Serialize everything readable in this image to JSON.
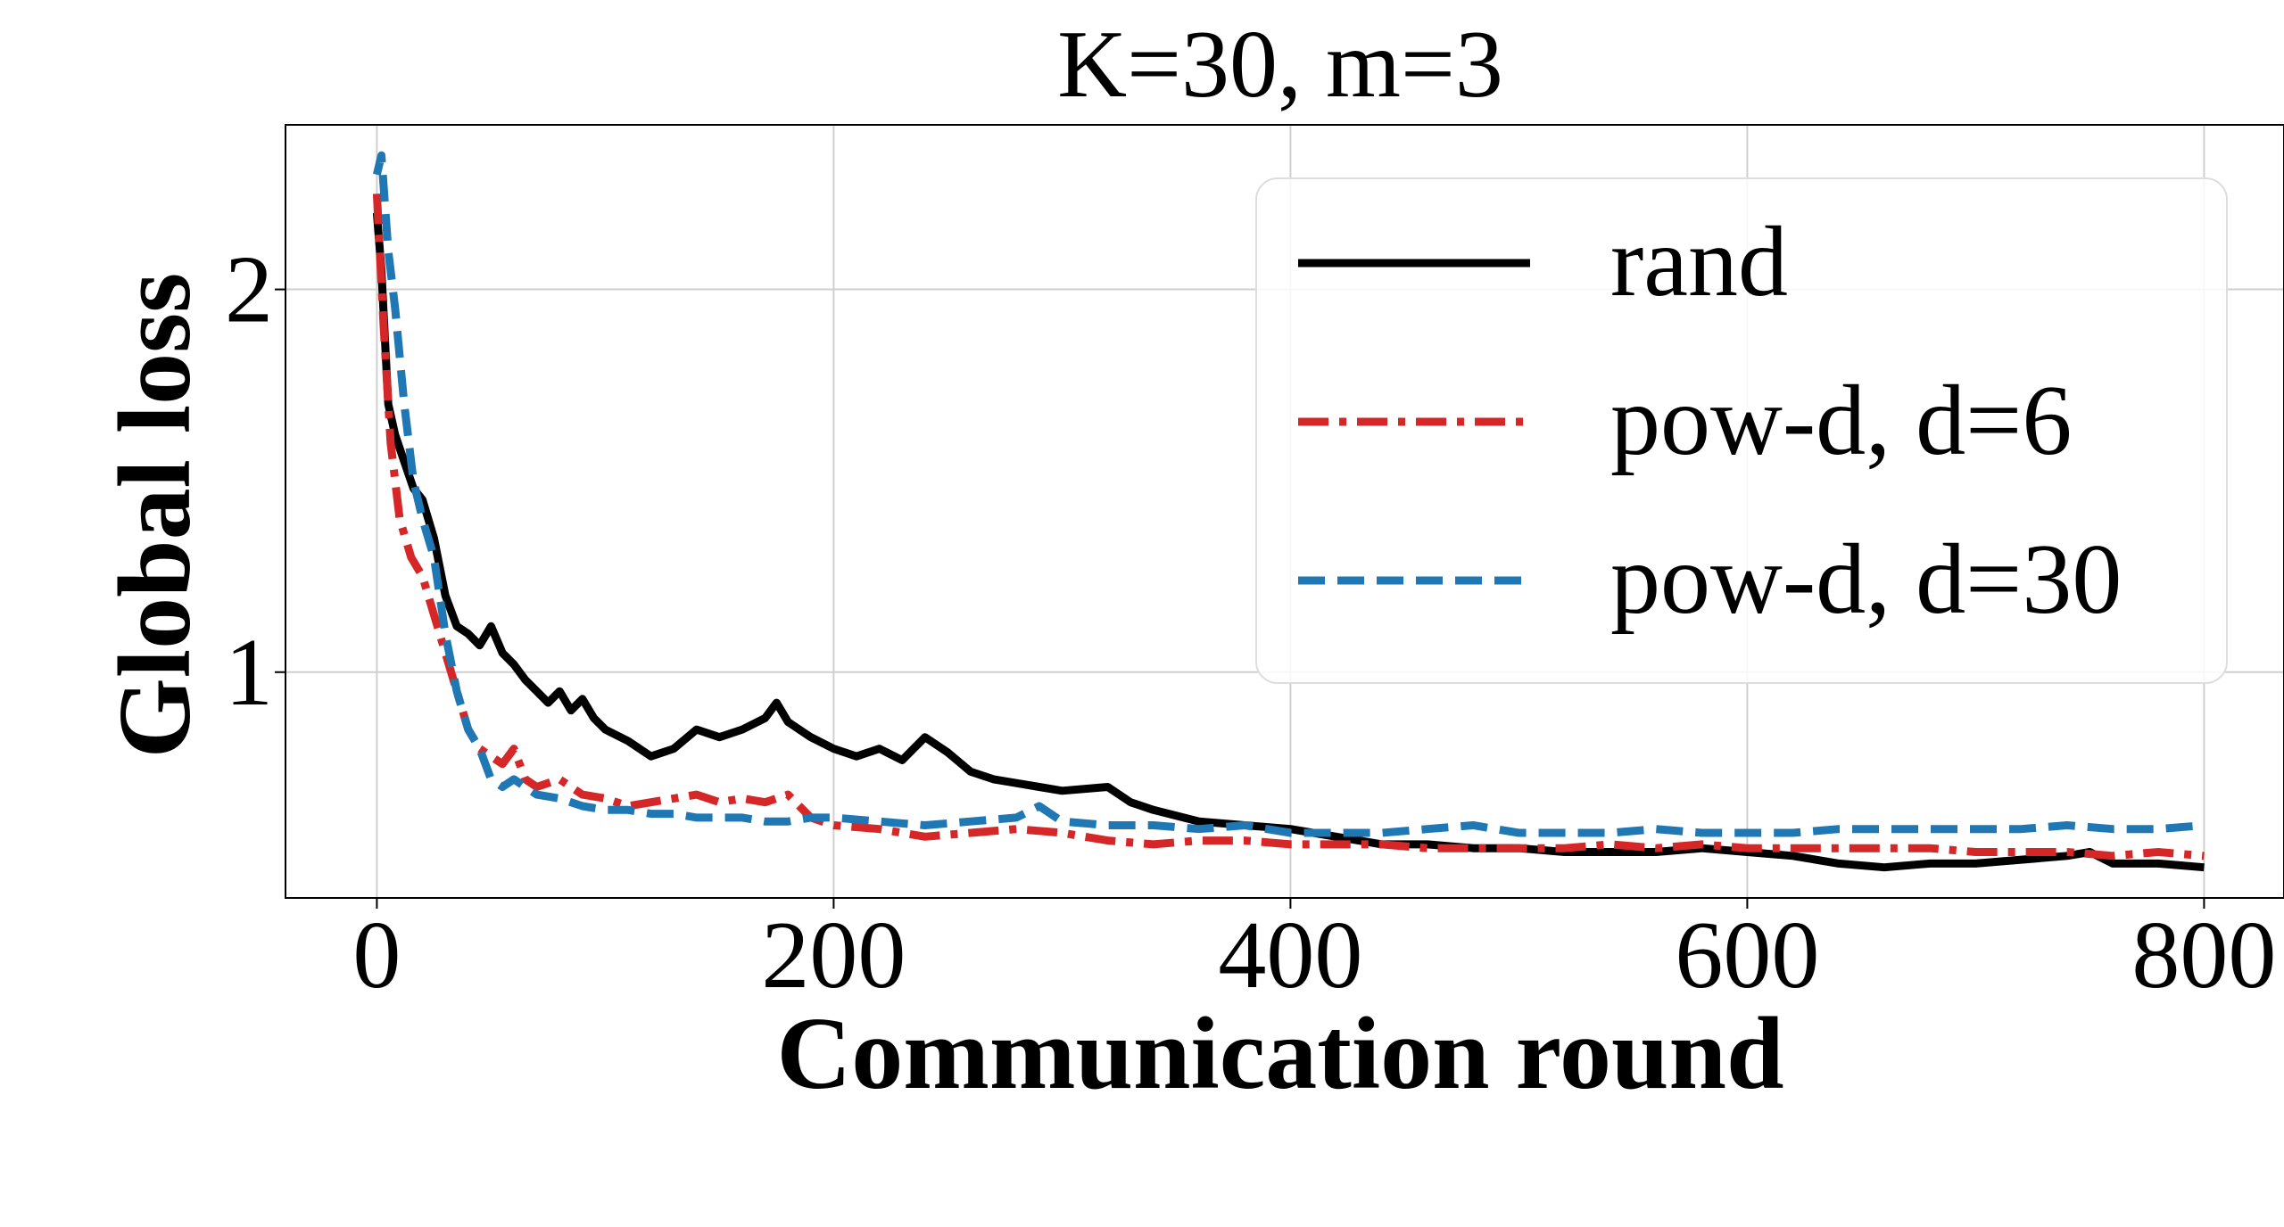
{
  "chart_data": {
    "type": "line",
    "title": "K=30, m=3",
    "xlabel": "Communication round",
    "ylabel": "Global loss",
    "xlim": [
      -40,
      835
    ],
    "ylim": [
      0.41,
      2.43
    ],
    "xticks": [
      0,
      200,
      400,
      600,
      800
    ],
    "yticks": [
      1,
      2
    ],
    "grid": true,
    "legend": {
      "placement": "top-right",
      "entries": [
        "rand",
        "pow-d, d=6",
        "pow-d, d=30"
      ]
    },
    "series": [
      {
        "name": "rand",
        "color": "#000000",
        "style": "solid",
        "points": [
          [
            0,
            2.2
          ],
          [
            2,
            2.05
          ],
          [
            5,
            1.7
          ],
          [
            8,
            1.62
          ],
          [
            12,
            1.55
          ],
          [
            16,
            1.48
          ],
          [
            20,
            1.45
          ],
          [
            25,
            1.35
          ],
          [
            30,
            1.2
          ],
          [
            35,
            1.12
          ],
          [
            40,
            1.1
          ],
          [
            45,
            1.07
          ],
          [
            50,
            1.12
          ],
          [
            55,
            1.05
          ],
          [
            60,
            1.02
          ],
          [
            65,
            0.98
          ],
          [
            70,
            0.95
          ],
          [
            75,
            0.92
          ],
          [
            80,
            0.95
          ],
          [
            85,
            0.9
          ],
          [
            90,
            0.93
          ],
          [
            95,
            0.88
          ],
          [
            100,
            0.85
          ],
          [
            110,
            0.82
          ],
          [
            120,
            0.78
          ],
          [
            130,
            0.8
          ],
          [
            140,
            0.85
          ],
          [
            150,
            0.83
          ],
          [
            160,
            0.85
          ],
          [
            170,
            0.88
          ],
          [
            175,
            0.92
          ],
          [
            180,
            0.87
          ],
          [
            190,
            0.83
          ],
          [
            200,
            0.8
          ],
          [
            210,
            0.78
          ],
          [
            220,
            0.8
          ],
          [
            230,
            0.77
          ],
          [
            240,
            0.83
          ],
          [
            250,
            0.79
          ],
          [
            260,
            0.74
          ],
          [
            270,
            0.72
          ],
          [
            280,
            0.71
          ],
          [
            290,
            0.7
          ],
          [
            300,
            0.69
          ],
          [
            320,
            0.7
          ],
          [
            330,
            0.66
          ],
          [
            340,
            0.64
          ],
          [
            360,
            0.61
          ],
          [
            380,
            0.6
          ],
          [
            400,
            0.59
          ],
          [
            420,
            0.57
          ],
          [
            440,
            0.55
          ],
          [
            460,
            0.55
          ],
          [
            480,
            0.54
          ],
          [
            500,
            0.54
          ],
          [
            520,
            0.53
          ],
          [
            540,
            0.53
          ],
          [
            560,
            0.53
          ],
          [
            580,
            0.54
          ],
          [
            600,
            0.53
          ],
          [
            620,
            0.52
          ],
          [
            640,
            0.5
          ],
          [
            660,
            0.49
          ],
          [
            680,
            0.5
          ],
          [
            700,
            0.5
          ],
          [
            720,
            0.51
          ],
          [
            740,
            0.52
          ],
          [
            750,
            0.53
          ],
          [
            760,
            0.5
          ],
          [
            780,
            0.5
          ],
          [
            800,
            0.49
          ]
        ]
      },
      {
        "name": "pow-d, d=6",
        "color": "#d62728",
        "style": "dashdot",
        "points": [
          [
            0,
            2.25
          ],
          [
            3,
            1.9
          ],
          [
            6,
            1.6
          ],
          [
            10,
            1.4
          ],
          [
            15,
            1.3
          ],
          [
            20,
            1.25
          ],
          [
            25,
            1.15
          ],
          [
            30,
            1.05
          ],
          [
            35,
            0.95
          ],
          [
            40,
            0.85
          ],
          [
            45,
            0.8
          ],
          [
            50,
            0.78
          ],
          [
            55,
            0.76
          ],
          [
            60,
            0.8
          ],
          [
            65,
            0.72
          ],
          [
            70,
            0.7
          ],
          [
            80,
            0.72
          ],
          [
            90,
            0.68
          ],
          [
            100,
            0.67
          ],
          [
            110,
            0.65
          ],
          [
            120,
            0.66
          ],
          [
            130,
            0.67
          ],
          [
            140,
            0.68
          ],
          [
            150,
            0.66
          ],
          [
            160,
            0.67
          ],
          [
            170,
            0.66
          ],
          [
            180,
            0.68
          ],
          [
            190,
            0.62
          ],
          [
            200,
            0.6
          ],
          [
            220,
            0.59
          ],
          [
            240,
            0.57
          ],
          [
            260,
            0.58
          ],
          [
            280,
            0.59
          ],
          [
            300,
            0.58
          ],
          [
            320,
            0.56
          ],
          [
            340,
            0.55
          ],
          [
            360,
            0.56
          ],
          [
            380,
            0.56
          ],
          [
            400,
            0.55
          ],
          [
            420,
            0.55
          ],
          [
            440,
            0.55
          ],
          [
            460,
            0.54
          ],
          [
            480,
            0.54
          ],
          [
            500,
            0.54
          ],
          [
            520,
            0.54
          ],
          [
            540,
            0.55
          ],
          [
            560,
            0.54
          ],
          [
            580,
            0.55
          ],
          [
            600,
            0.54
          ],
          [
            620,
            0.54
          ],
          [
            640,
            0.54
          ],
          [
            660,
            0.54
          ],
          [
            680,
            0.54
          ],
          [
            700,
            0.53
          ],
          [
            720,
            0.53
          ],
          [
            740,
            0.53
          ],
          [
            760,
            0.52
          ],
          [
            780,
            0.53
          ],
          [
            800,
            0.52
          ]
        ]
      },
      {
        "name": "pow-d, d=30",
        "color": "#1f77b4",
        "style": "dashed",
        "points": [
          [
            0,
            2.3
          ],
          [
            2,
            2.35
          ],
          [
            5,
            2.1
          ],
          [
            8,
            1.95
          ],
          [
            12,
            1.7
          ],
          [
            16,
            1.5
          ],
          [
            20,
            1.4
          ],
          [
            25,
            1.3
          ],
          [
            30,
            1.1
          ],
          [
            35,
            0.95
          ],
          [
            40,
            0.85
          ],
          [
            45,
            0.8
          ],
          [
            50,
            0.72
          ],
          [
            55,
            0.7
          ],
          [
            60,
            0.72
          ],
          [
            70,
            0.68
          ],
          [
            80,
            0.67
          ],
          [
            90,
            0.65
          ],
          [
            100,
            0.64
          ],
          [
            110,
            0.64
          ],
          [
            120,
            0.63
          ],
          [
            130,
            0.63
          ],
          [
            140,
            0.62
          ],
          [
            150,
            0.62
          ],
          [
            160,
            0.62
          ],
          [
            170,
            0.61
          ],
          [
            180,
            0.61
          ],
          [
            190,
            0.62
          ],
          [
            200,
            0.62
          ],
          [
            220,
            0.61
          ],
          [
            240,
            0.6
          ],
          [
            260,
            0.61
          ],
          [
            280,
            0.62
          ],
          [
            290,
            0.65
          ],
          [
            300,
            0.61
          ],
          [
            320,
            0.6
          ],
          [
            340,
            0.6
          ],
          [
            360,
            0.59
          ],
          [
            380,
            0.6
          ],
          [
            400,
            0.58
          ],
          [
            420,
            0.58
          ],
          [
            440,
            0.58
          ],
          [
            460,
            0.59
          ],
          [
            480,
            0.6
          ],
          [
            500,
            0.58
          ],
          [
            520,
            0.58
          ],
          [
            540,
            0.58
          ],
          [
            560,
            0.59
          ],
          [
            580,
            0.58
          ],
          [
            600,
            0.58
          ],
          [
            620,
            0.58
          ],
          [
            640,
            0.59
          ],
          [
            660,
            0.59
          ],
          [
            680,
            0.59
          ],
          [
            700,
            0.59
          ],
          [
            720,
            0.59
          ],
          [
            740,
            0.6
          ],
          [
            760,
            0.59
          ],
          [
            780,
            0.59
          ],
          [
            800,
            0.6
          ]
        ]
      }
    ]
  }
}
